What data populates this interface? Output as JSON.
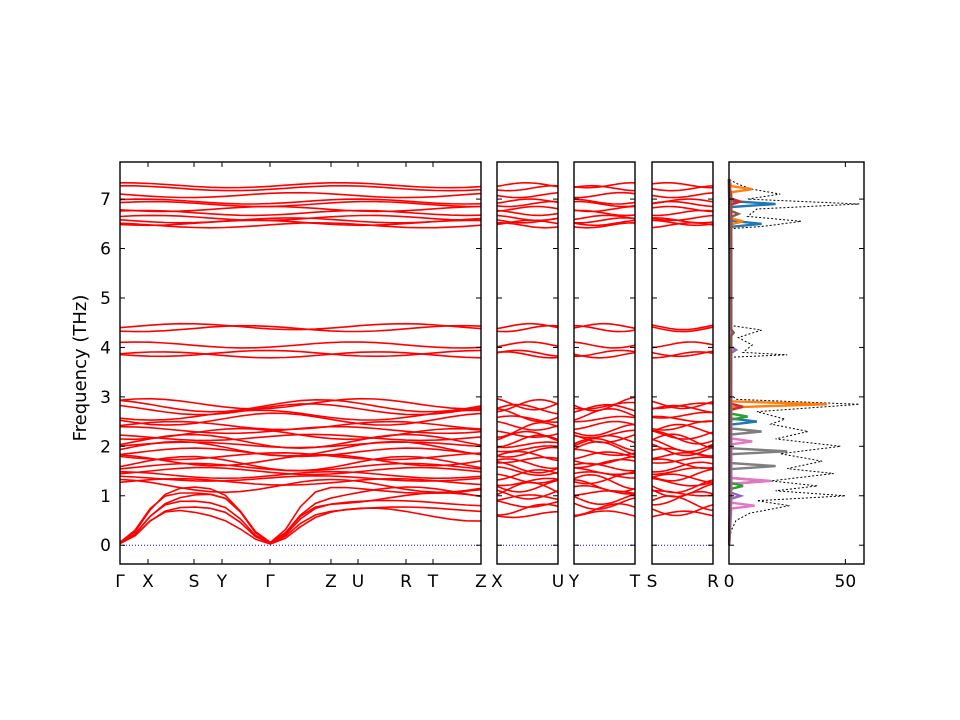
{
  "chart_data": {
    "type": "line",
    "title": "",
    "ylabel": "Frequency (THz)",
    "ylim": [
      -0.38,
      7.75
    ],
    "yticks": [
      0,
      1,
      2,
      3,
      4,
      5,
      6,
      7
    ],
    "grid": false,
    "colors": {
      "bands": "#ff0000",
      "zero_line": "#0000ff",
      "total_dos": "#000000",
      "pdos": [
        "#1f77b4",
        "#ff7f0e",
        "#2ca02c",
        "#d62728",
        "#9467bd",
        "#8c564b",
        "#e377c2",
        "#7f7f7f"
      ]
    },
    "panels": [
      {
        "id": "main",
        "tick_labels": [
          "Γ",
          "X",
          "S",
          "Y",
          "Γ",
          "Z",
          "U",
          "R",
          "T",
          "Z"
        ],
        "segment_labels_note": "",
        "band_levels": [
          0.62,
          0.72,
          0.85,
          0.95,
          1.05,
          1.12,
          1.2,
          1.28,
          1.35,
          1.42,
          1.5,
          1.58,
          1.65,
          1.72,
          1.8,
          1.88,
          1.95,
          2.03,
          2.1,
          2.18,
          2.25,
          2.33,
          2.42,
          2.55,
          2.63,
          2.75,
          2.82,
          2.86,
          3.85,
          3.88,
          4.05,
          4.38,
          4.42,
          6.47,
          6.52,
          6.57,
          6.62,
          6.72,
          6.8,
          6.9,
          6.95,
          7.08,
          7.22,
          7.28
        ]
      },
      {
        "id": "x-u",
        "tick_labels": [
          "X",
          "U"
        ]
      },
      {
        "id": "y-t",
        "tick_labels": [
          "Y",
          "T"
        ]
      },
      {
        "id": "s-r",
        "tick_labels": [
          "S",
          "R"
        ]
      },
      {
        "id": "dos",
        "tick_labels": [
          "0",
          "50"
        ],
        "xlim": [
          0,
          58
        ],
        "total_dos": [
          [
            0.0,
            0.0
          ],
          [
            0.3,
            1
          ],
          [
            0.5,
            3
          ],
          [
            0.65,
            9
          ],
          [
            0.8,
            26
          ],
          [
            0.9,
            12
          ],
          [
            1.0,
            50
          ],
          [
            1.1,
            20
          ],
          [
            1.2,
            38
          ],
          [
            1.3,
            18
          ],
          [
            1.45,
            45
          ],
          [
            1.55,
            25
          ],
          [
            1.7,
            40
          ],
          [
            1.85,
            22
          ],
          [
            2.0,
            48
          ],
          [
            2.15,
            20
          ],
          [
            2.3,
            34
          ],
          [
            2.45,
            18
          ],
          [
            2.55,
            24
          ],
          [
            2.7,
            12
          ],
          [
            2.85,
            56
          ],
          [
            2.95,
            3
          ],
          [
            3.1,
            0
          ],
          [
            3.8,
            0
          ],
          [
            3.85,
            25
          ],
          [
            3.9,
            6
          ],
          [
            4.05,
            10
          ],
          [
            4.2,
            4
          ],
          [
            4.35,
            14
          ],
          [
            4.45,
            0
          ],
          [
            6.4,
            0
          ],
          [
            6.45,
            15
          ],
          [
            6.55,
            31
          ],
          [
            6.65,
            8
          ],
          [
            6.8,
            12
          ],
          [
            6.9,
            56
          ],
          [
            7.0,
            8
          ],
          [
            7.1,
            22
          ],
          [
            7.2,
            10
          ],
          [
            7.3,
            4
          ],
          [
            7.4,
            0
          ]
        ],
        "pdos_peaks": [
          {
            "color_index": 0,
            "points": [
              [
                2.5,
                12
              ],
              [
                6.5,
                14
              ],
              [
                6.9,
                20
              ]
            ]
          },
          {
            "color_index": 1,
            "points": [
              [
                2.85,
                42
              ],
              [
                7.2,
                10
              ],
              [
                6.55,
                6
              ]
            ]
          },
          {
            "color_index": 7,
            "points": [
              [
                1.9,
                25
              ],
              [
                1.6,
                20
              ],
              [
                1.3,
                16
              ],
              [
                2.3,
                14
              ]
            ]
          },
          {
            "color_index": 6,
            "points": [
              [
                1.3,
                18
              ],
              [
                0.8,
                11
              ],
              [
                2.1,
                10
              ]
            ]
          },
          {
            "color_index": 2,
            "points": [
              [
                2.6,
                8
              ],
              [
                1.2,
                6
              ]
            ]
          },
          {
            "color_index": 3,
            "points": [
              [
                2.8,
                6
              ],
              [
                6.95,
                5
              ]
            ]
          },
          {
            "color_index": 4,
            "points": [
              [
                1.0,
                5
              ],
              [
                3.95,
                3
              ]
            ]
          },
          {
            "color_index": 5,
            "points": [
              [
                4.3,
                2
              ],
              [
                6.7,
                4
              ]
            ]
          }
        ]
      }
    ]
  }
}
